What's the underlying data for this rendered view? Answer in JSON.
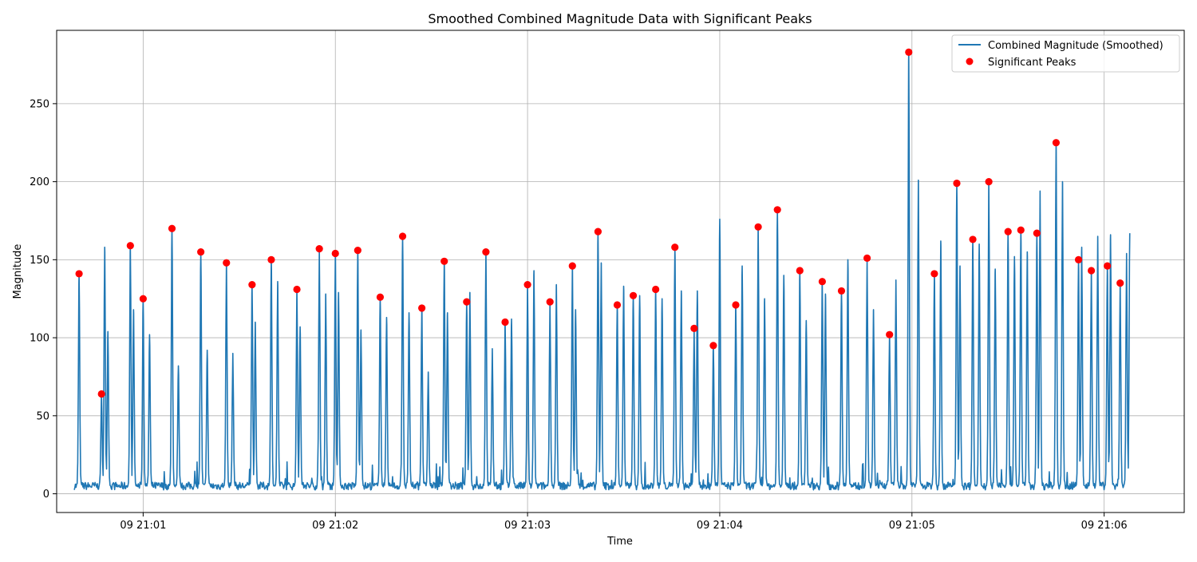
{
  "chart_data": {
    "type": "line",
    "title": "Smoothed Combined Magnitude Data with Significant Peaks",
    "xlabel": "Time",
    "ylabel": "Magnitude",
    "x_axis": {
      "type": "time",
      "range": [
        "21:00:33",
        "21:06:25"
      ],
      "ticks": [
        {
          "value": "21:01:00",
          "label": "09 21:01"
        },
        {
          "value": "21:02:00",
          "label": "09 21:02"
        },
        {
          "value": "21:03:00",
          "label": "09 21:03"
        },
        {
          "value": "21:04:00",
          "label": "09 21:04"
        },
        {
          "value": "21:05:00",
          "label": "09 21:05"
        },
        {
          "value": "21:06:00",
          "label": "09 21:06"
        }
      ]
    },
    "y_axis": {
      "range": [
        -12,
        297
      ],
      "ticks": [
        0,
        50,
        100,
        150,
        200,
        250
      ]
    },
    "grid": true,
    "legend": {
      "placement": "top-right"
    },
    "colors": {
      "line": "#1f77b4",
      "peaks": "#ff0000",
      "grid": "#b0b0b0"
    },
    "series": [
      {
        "name": "Combined Magnitude (Smoothed)",
        "type": "line",
        "baseline": 5,
        "spikes": [
          {
            "t": "21:00:40",
            "y": 141
          },
          {
            "t": "21:00:47",
            "y": 64
          },
          {
            "t": "21:00:48",
            "y": 158
          },
          {
            "t": "21:00:49",
            "y": 104
          },
          {
            "t": "21:00:56",
            "y": 159
          },
          {
            "t": "21:00:57",
            "y": 118
          },
          {
            "t": "21:01:00",
            "y": 125
          },
          {
            "t": "21:01:02",
            "y": 102
          },
          {
            "t": "21:01:09",
            "y": 170
          },
          {
            "t": "21:01:11",
            "y": 82
          },
          {
            "t": "21:01:18",
            "y": 155
          },
          {
            "t": "21:01:20",
            "y": 92
          },
          {
            "t": "21:01:26",
            "y": 148
          },
          {
            "t": "21:01:28",
            "y": 90
          },
          {
            "t": "21:01:34",
            "y": 134
          },
          {
            "t": "21:01:35",
            "y": 110
          },
          {
            "t": "21:01:40",
            "y": 150
          },
          {
            "t": "21:01:42",
            "y": 136
          },
          {
            "t": "21:01:48",
            "y": 131
          },
          {
            "t": "21:01:49",
            "y": 107
          },
          {
            "t": "21:01:55",
            "y": 157
          },
          {
            "t": "21:01:57",
            "y": 128
          },
          {
            "t": "21:02:00",
            "y": 154
          },
          {
            "t": "21:02:01",
            "y": 129
          },
          {
            "t": "21:02:07",
            "y": 156
          },
          {
            "t": "21:02:08",
            "y": 105
          },
          {
            "t": "21:02:14",
            "y": 126
          },
          {
            "t": "21:02:16",
            "y": 113
          },
          {
            "t": "21:02:21",
            "y": 165
          },
          {
            "t": "21:02:23",
            "y": 116
          },
          {
            "t": "21:02:27",
            "y": 119
          },
          {
            "t": "21:02:29",
            "y": 78
          },
          {
            "t": "21:02:34",
            "y": 149
          },
          {
            "t": "21:02:35",
            "y": 116
          },
          {
            "t": "21:02:41",
            "y": 123
          },
          {
            "t": "21:02:42",
            "y": 129
          },
          {
            "t": "21:02:47",
            "y": 155
          },
          {
            "t": "21:02:49",
            "y": 93
          },
          {
            "t": "21:02:53",
            "y": 110
          },
          {
            "t": "21:02:55",
            "y": 112
          },
          {
            "t": "21:03:00",
            "y": 134
          },
          {
            "t": "21:03:02",
            "y": 143
          },
          {
            "t": "21:03:07",
            "y": 123
          },
          {
            "t": "21:03:09",
            "y": 134
          },
          {
            "t": "21:03:14",
            "y": 146
          },
          {
            "t": "21:03:15",
            "y": 118
          },
          {
            "t": "21:03:22",
            "y": 168
          },
          {
            "t": "21:03:23",
            "y": 148
          },
          {
            "t": "21:03:28",
            "y": 121
          },
          {
            "t": "21:03:30",
            "y": 133
          },
          {
            "t": "21:03:33",
            "y": 127
          },
          {
            "t": "21:03:35",
            "y": 127
          },
          {
            "t": "21:03:40",
            "y": 131
          },
          {
            "t": "21:03:42",
            "y": 125
          },
          {
            "t": "21:03:46",
            "y": 158
          },
          {
            "t": "21:03:48",
            "y": 130
          },
          {
            "t": "21:03:52",
            "y": 106
          },
          {
            "t": "21:03:53",
            "y": 130
          },
          {
            "t": "21:03:58",
            "y": 95
          },
          {
            "t": "21:04:00",
            "y": 176
          },
          {
            "t": "21:04:05",
            "y": 121
          },
          {
            "t": "21:04:07",
            "y": 146
          },
          {
            "t": "21:04:12",
            "y": 171
          },
          {
            "t": "21:04:14",
            "y": 125
          },
          {
            "t": "21:04:18",
            "y": 182
          },
          {
            "t": "21:04:20",
            "y": 140
          },
          {
            "t": "21:04:25",
            "y": 143
          },
          {
            "t": "21:04:27",
            "y": 111
          },
          {
            "t": "21:04:32",
            "y": 136
          },
          {
            "t": "21:04:33",
            "y": 128
          },
          {
            "t": "21:04:38",
            "y": 130
          },
          {
            "t": "21:04:40",
            "y": 150
          },
          {
            "t": "21:04:46",
            "y": 151
          },
          {
            "t": "21:04:48",
            "y": 118
          },
          {
            "t": "21:04:53",
            "y": 102
          },
          {
            "t": "21:04:55",
            "y": 137
          },
          {
            "t": "21:04:59",
            "y": 283
          },
          {
            "t": "21:05:02",
            "y": 201
          },
          {
            "t": "21:05:07",
            "y": 141
          },
          {
            "t": "21:05:09",
            "y": 162
          },
          {
            "t": "21:05:14",
            "y": 199
          },
          {
            "t": "21:05:15",
            "y": 146
          },
          {
            "t": "21:05:19",
            "y": 163
          },
          {
            "t": "21:05:21",
            "y": 160
          },
          {
            "t": "21:05:24",
            "y": 200
          },
          {
            "t": "21:05:26",
            "y": 144
          },
          {
            "t": "21:05:30",
            "y": 168
          },
          {
            "t": "21:05:32",
            "y": 152
          },
          {
            "t": "21:05:34",
            "y": 169
          },
          {
            "t": "21:05:36",
            "y": 155
          },
          {
            "t": "21:05:39",
            "y": 167
          },
          {
            "t": "21:05:40",
            "y": 194
          },
          {
            "t": "21:05:45",
            "y": 225
          },
          {
            "t": "21:05:47",
            "y": 200
          },
          {
            "t": "21:05:52",
            "y": 150
          },
          {
            "t": "21:05:53",
            "y": 158
          },
          {
            "t": "21:05:56",
            "y": 143
          },
          {
            "t": "21:05:58",
            "y": 165
          },
          {
            "t": "21:06:01",
            "y": 146
          },
          {
            "t": "21:06:02",
            "y": 166
          },
          {
            "t": "21:06:05",
            "y": 135
          },
          {
            "t": "21:06:07",
            "y": 154
          },
          {
            "t": "21:06:08",
            "y": 167
          }
        ]
      },
      {
        "name": "Significant Peaks",
        "type": "scatter",
        "points": [
          {
            "t": "21:00:40",
            "y": 141
          },
          {
            "t": "21:00:47",
            "y": 64
          },
          {
            "t": "21:00:56",
            "y": 159
          },
          {
            "t": "21:01:00",
            "y": 125
          },
          {
            "t": "21:01:09",
            "y": 170
          },
          {
            "t": "21:01:18",
            "y": 155
          },
          {
            "t": "21:01:26",
            "y": 148
          },
          {
            "t": "21:01:34",
            "y": 134
          },
          {
            "t": "21:01:40",
            "y": 150
          },
          {
            "t": "21:01:48",
            "y": 131
          },
          {
            "t": "21:01:55",
            "y": 157
          },
          {
            "t": "21:02:00",
            "y": 154
          },
          {
            "t": "21:02:07",
            "y": 156
          },
          {
            "t": "21:02:14",
            "y": 126
          },
          {
            "t": "21:02:21",
            "y": 165
          },
          {
            "t": "21:02:27",
            "y": 119
          },
          {
            "t": "21:02:34",
            "y": 149
          },
          {
            "t": "21:02:41",
            "y": 123
          },
          {
            "t": "21:02:47",
            "y": 155
          },
          {
            "t": "21:02:53",
            "y": 110
          },
          {
            "t": "21:03:00",
            "y": 134
          },
          {
            "t": "21:03:07",
            "y": 123
          },
          {
            "t": "21:03:14",
            "y": 146
          },
          {
            "t": "21:03:22",
            "y": 168
          },
          {
            "t": "21:03:28",
            "y": 121
          },
          {
            "t": "21:03:33",
            "y": 127
          },
          {
            "t": "21:03:40",
            "y": 131
          },
          {
            "t": "21:03:46",
            "y": 158
          },
          {
            "t": "21:03:52",
            "y": 106
          },
          {
            "t": "21:03:58",
            "y": 95
          },
          {
            "t": "21:04:05",
            "y": 121
          },
          {
            "t": "21:04:12",
            "y": 171
          },
          {
            "t": "21:04:18",
            "y": 182
          },
          {
            "t": "21:04:25",
            "y": 143
          },
          {
            "t": "21:04:32",
            "y": 136
          },
          {
            "t": "21:04:38",
            "y": 130
          },
          {
            "t": "21:04:46",
            "y": 151
          },
          {
            "t": "21:04:53",
            "y": 102
          },
          {
            "t": "21:04:59",
            "y": 283
          },
          {
            "t": "21:05:07",
            "y": 141
          },
          {
            "t": "21:05:14",
            "y": 199
          },
          {
            "t": "21:05:19",
            "y": 163
          },
          {
            "t": "21:05:24",
            "y": 200
          },
          {
            "t": "21:05:30",
            "y": 168
          },
          {
            "t": "21:05:34",
            "y": 169
          },
          {
            "t": "21:05:39",
            "y": 167
          },
          {
            "t": "21:05:45",
            "y": 225
          },
          {
            "t": "21:05:52",
            "y": 150
          },
          {
            "t": "21:05:56",
            "y": 143
          },
          {
            "t": "21:06:01",
            "y": 146
          },
          {
            "t": "21:06:05",
            "y": 135
          }
        ]
      }
    ]
  }
}
